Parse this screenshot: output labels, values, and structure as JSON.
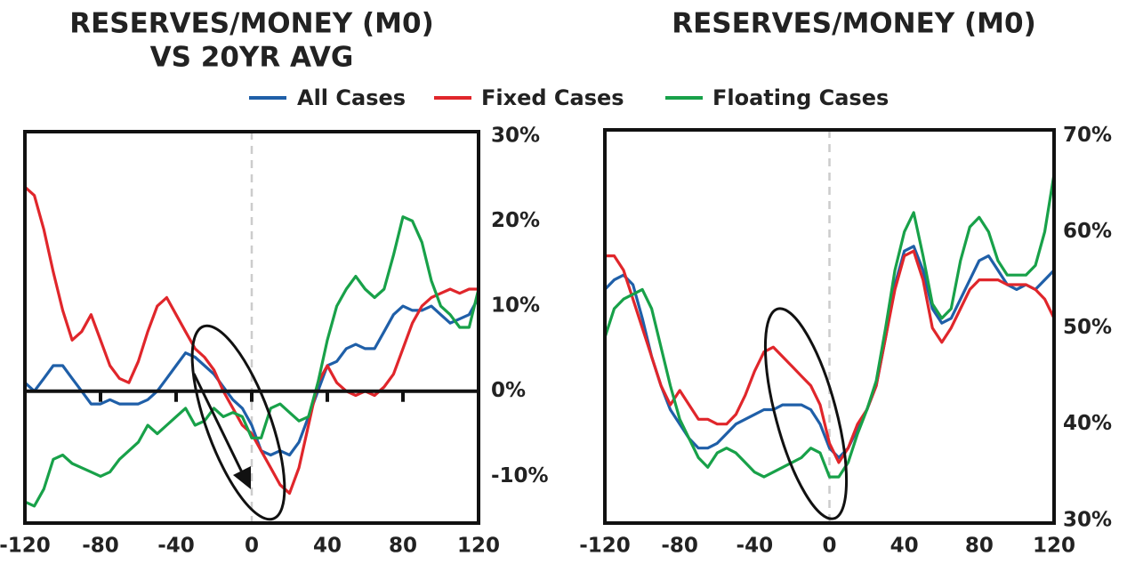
{
  "chart_data": [
    {
      "type": "line",
      "title": [
        "RESERVES/MONEY (M0)",
        "VS 20YR AVG"
      ],
      "x": [
        -120,
        -115,
        -110,
        -105,
        -100,
        -95,
        -90,
        -85,
        -80,
        -75,
        -70,
        -65,
        -60,
        -55,
        -50,
        -45,
        -40,
        -35,
        -30,
        -25,
        -20,
        -15,
        -10,
        -5,
        0,
        5,
        10,
        15,
        20,
        25,
        30,
        35,
        40,
        45,
        50,
        55,
        60,
        65,
        70,
        75,
        80,
        85,
        90,
        95,
        100,
        105,
        110,
        115,
        120
      ],
      "series": [
        {
          "name": "All Cases",
          "color": "#1f5fa8",
          "values": [
            1,
            0,
            1.5,
            3,
            3,
            1.5,
            0,
            -1.5,
            -1.5,
            -1,
            -1.5,
            -1.5,
            -1.5,
            -1,
            0,
            1.5,
            3,
            4.5,
            4,
            3,
            2,
            0.5,
            -1,
            -2,
            -4,
            -7,
            -7.5,
            -7,
            -7.5,
            -6,
            -3,
            0,
            3,
            3.5,
            5,
            5.5,
            5,
            5,
            7,
            9,
            10,
            9.5,
            9.5,
            10,
            9,
            8,
            8.5,
            9,
            11
          ]
        },
        {
          "name": "Fixed Cases",
          "color": "#e0262b",
          "values": [
            24,
            23,
            19,
            14,
            9.5,
            6,
            7,
            9,
            6,
            3,
            1.5,
            1,
            3.5,
            7,
            10,
            11,
            9,
            7,
            5,
            4,
            2.5,
            0,
            -2,
            -4,
            -5,
            -7,
            -9,
            -11,
            -12,
            -9,
            -4,
            1,
            3,
            1,
            0,
            -0.5,
            0,
            -0.5,
            0.5,
            2,
            5,
            8,
            10,
            11,
            11.5,
            12,
            11.5,
            12,
            12
          ]
        },
        {
          "name": "Floating Cases",
          "color": "#18a149",
          "values": [
            -13,
            -13.5,
            -11.5,
            -8,
            -7.5,
            -8.5,
            -9,
            -9.5,
            -10,
            -9.5,
            -8,
            -7,
            -6,
            -4,
            -5,
            -4,
            -3,
            -2,
            -4,
            -3.5,
            -2,
            -3,
            -2.5,
            -3,
            -5.5,
            -5.5,
            -2,
            -1.5,
            -2.5,
            -3.5,
            -3,
            1,
            6,
            10,
            12,
            13.5,
            12,
            11,
            12,
            16,
            20.5,
            20,
            17.5,
            13,
            10,
            9,
            7.5,
            7.5,
            12
          ]
        }
      ],
      "xlim": [
        -120,
        120
      ],
      "xticks": [
        -120,
        -80,
        -40,
        0,
        40,
        80,
        120
      ],
      "ylim": [
        -15.5,
        30.5
      ],
      "yticks": [
        {
          "value": -10,
          "label": "-10%"
        },
        {
          "value": 0,
          "label": "0%"
        },
        {
          "value": 10,
          "label": "10%"
        },
        {
          "value": 20,
          "label": "20%"
        },
        {
          "value": 30,
          "label": "30%"
        }
      ],
      "zero_line": true,
      "vline": 0
    },
    {
      "type": "line",
      "title": [
        "RESERVES/MONEY (M0)"
      ],
      "x": [
        -120,
        -115,
        -110,
        -105,
        -100,
        -95,
        -90,
        -85,
        -80,
        -75,
        -70,
        -65,
        -60,
        -55,
        -50,
        -45,
        -40,
        -35,
        -30,
        -25,
        -20,
        -15,
        -10,
        -5,
        0,
        5,
        10,
        15,
        20,
        25,
        30,
        35,
        40,
        45,
        50,
        55,
        60,
        65,
        70,
        75,
        80,
        85,
        90,
        95,
        100,
        105,
        110,
        115,
        120
      ],
      "series": [
        {
          "name": "All Cases",
          "color": "#1f5fa8",
          "values": [
            54,
            55,
            55.5,
            54.5,
            51,
            47,
            44,
            41.5,
            40,
            38.5,
            37.5,
            37.5,
            38,
            39,
            40,
            40.5,
            41,
            41.5,
            41.5,
            42,
            42,
            42,
            41.5,
            40,
            37.5,
            36.5,
            37.5,
            39.5,
            41.5,
            44,
            49,
            54.5,
            58,
            58.5,
            56,
            52,
            50.5,
            51,
            53,
            55,
            57,
            57.5,
            56,
            54.5,
            54,
            54.5,
            54,
            55,
            56
          ]
        },
        {
          "name": "Fixed Cases",
          "color": "#e0262b",
          "values": [
            57.5,
            57.5,
            56,
            53,
            50,
            47,
            44,
            42,
            43.5,
            42,
            40.5,
            40.5,
            40,
            40,
            41,
            43,
            45.5,
            47.5,
            48,
            47,
            46,
            45,
            44,
            42,
            38,
            36,
            37.5,
            40,
            41.5,
            44,
            49,
            54,
            57.5,
            58,
            55,
            50,
            48.5,
            50,
            52,
            54,
            55,
            55,
            55,
            54.5,
            54.5,
            54.5,
            54,
            53,
            51
          ]
        },
        {
          "name": "Floating Cases",
          "color": "#18a149",
          "values": [
            49,
            52,
            53,
            53.5,
            54,
            52,
            48,
            44,
            40.5,
            38.5,
            36.5,
            35.5,
            37,
            37.5,
            37,
            36,
            35,
            34.5,
            35,
            35.5,
            36,
            36.5,
            37.5,
            37,
            34.5,
            34.5,
            36,
            39,
            41.5,
            44.5,
            50,
            56,
            60,
            62,
            57.5,
            52.5,
            51,
            52,
            57,
            60.5,
            61.5,
            60,
            57,
            55.5,
            55.5,
            55.5,
            56.5,
            60,
            66
          ]
        }
      ],
      "xlim": [
        -120,
        120
      ],
      "xticks": [
        -120,
        -80,
        -40,
        0,
        40,
        80,
        120
      ],
      "ylim": [
        29.7,
        70.6
      ],
      "yticks": [
        {
          "value": 30,
          "label": "30%"
        },
        {
          "value": 40,
          "label": "40%"
        },
        {
          "value": 50,
          "label": "50%"
        },
        {
          "value": 60,
          "label": "60%"
        },
        {
          "value": 70,
          "label": "70%"
        }
      ],
      "zero_line": false,
      "vline": 0
    }
  ]
}
